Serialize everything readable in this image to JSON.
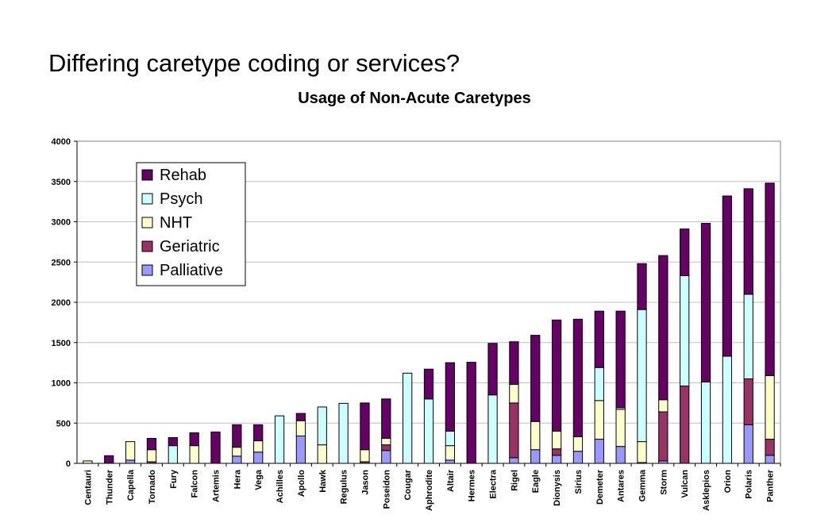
{
  "slide_title": "Differing caretype coding or services?",
  "chart_data": {
    "type": "bar",
    "stacked": true,
    "title": "Usage of Non-Acute Caretypes",
    "xlabel": "",
    "ylabel": "",
    "ylim": [
      0,
      4000
    ],
    "yticks": [
      0,
      500,
      1000,
      1500,
      2000,
      2500,
      3000,
      3500,
      4000
    ],
    "grid": true,
    "legend_position": "top-left",
    "categories": [
      "Centauri",
      "Thunder",
      "Capella",
      "Tornado",
      "Fury",
      "Falcon",
      "Artemis",
      "Hera",
      "Vega",
      "Achilles",
      "Apollo",
      "Hawk",
      "Regulus",
      "Jason",
      "Poseidon",
      "Cougar",
      "Aphrodite",
      "Altair",
      "Hermes",
      "Electra",
      "Rigel",
      "Eagle",
      "Dionysis",
      "Sirius",
      "Demeter",
      "Antares",
      "Gemma",
      "Storm",
      "Vulcan",
      "Asklepios",
      "Orion",
      "Polaris",
      "Panther"
    ],
    "series": [
      {
        "name": "Palliative",
        "color": "#9999ff",
        "values": [
          0,
          0,
          40,
          0,
          0,
          0,
          0,
          90,
          140,
          0,
          340,
          0,
          0,
          0,
          160,
          0,
          0,
          40,
          0,
          0,
          70,
          170,
          100,
          150,
          300,
          210,
          10,
          30,
          0,
          0,
          0,
          480,
          100
        ]
      },
      {
        "name": "Geriatric",
        "color": "#993366",
        "values": [
          0,
          0,
          0,
          20,
          0,
          0,
          0,
          0,
          0,
          0,
          0,
          0,
          0,
          20,
          70,
          0,
          0,
          0,
          0,
          0,
          680,
          0,
          80,
          0,
          0,
          0,
          0,
          610,
          960,
          0,
          0,
          570,
          200
        ]
      },
      {
        "name": "NHT",
        "color": "#ffffcc",
        "values": [
          30,
          0,
          230,
          150,
          0,
          220,
          0,
          110,
          140,
          0,
          190,
          230,
          0,
          150,
          80,
          0,
          0,
          180,
          0,
          0,
          230,
          350,
          220,
          180,
          480,
          460,
          260,
          150,
          0,
          0,
          0,
          0,
          790
        ]
      },
      {
        "name": "Psych",
        "color": "#ccffff",
        "values": [
          0,
          0,
          0,
          0,
          220,
          0,
          0,
          0,
          0,
          590,
          0,
          470,
          745,
          0,
          0,
          1120,
          800,
          180,
          0,
          850,
          0,
          0,
          0,
          0,
          410,
          20,
          1640,
          0,
          1370,
          1010,
          1330,
          1050,
          0
        ]
      },
      {
        "name": "Rehab",
        "color": "#660066",
        "values": [
          0,
          95,
          0,
          140,
          100,
          160,
          390,
          280,
          200,
          0,
          90,
          0,
          0,
          580,
          490,
          0,
          370,
          850,
          1255,
          640,
          530,
          1070,
          1380,
          1460,
          700,
          1200,
          570,
          1790,
          580,
          1970,
          1990,
          1310,
          2390
        ]
      }
    ]
  }
}
